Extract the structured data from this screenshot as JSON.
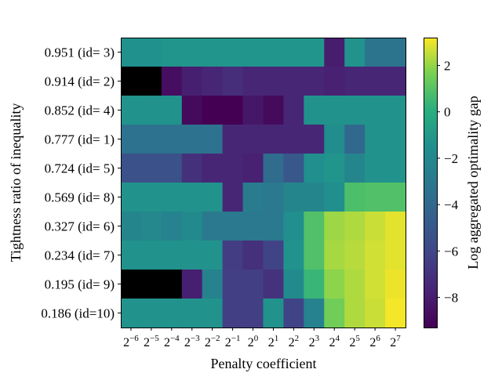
{
  "chart_data": {
    "type": "heatmap",
    "title": "",
    "xlabel": "Penalty coefficient",
    "ylabel": "Tightness ratio of inequality",
    "colorbar_label": "Log aggregated optimality gap",
    "colormap": "viridis",
    "color_range": [
      -9.3,
      3.2
    ],
    "colorbar_ticks": [
      2,
      0,
      -2,
      -4,
      -6,
      -8
    ],
    "colorbar_tick_labels": [
      "2",
      "0",
      "−2",
      "−4",
      "−6",
      "−8"
    ],
    "x_categories": [
      {
        "base": "2",
        "exp": "−6"
      },
      {
        "base": "2",
        "exp": "−5"
      },
      {
        "base": "2",
        "exp": "−4"
      },
      {
        "base": "2",
        "exp": "−3"
      },
      {
        "base": "2",
        "exp": "−2"
      },
      {
        "base": "2",
        "exp": "−1"
      },
      {
        "base": "2",
        "exp": "0"
      },
      {
        "base": "2",
        "exp": "1"
      },
      {
        "base": "2",
        "exp": "2"
      },
      {
        "base": "2",
        "exp": "3"
      },
      {
        "base": "2",
        "exp": "4"
      },
      {
        "base": "2",
        "exp": "5"
      },
      {
        "base": "2",
        "exp": "6"
      },
      {
        "base": "2",
        "exp": "7"
      }
    ],
    "y_categories": [
      "0.951 (id= 3)",
      "0.914 (id= 2)",
      "0.852 (id= 4)",
      "0.777 (id= 1)",
      "0.724 (id= 5)",
      "0.569 (id= 8)",
      "0.327 (id= 6)",
      "0.234 (id= 7)",
      "0.195 (id= 9)",
      "0.186 (id=10)"
    ],
    "missing_color": "#000000",
    "values": [
      [
        -1.4,
        -1.4,
        -1.2,
        -1.2,
        -1.2,
        -1.2,
        -1.2,
        -1.2,
        -1.2,
        -1.2,
        -8.0,
        -1.3,
        -3.3,
        -3.3
      ],
      [
        null,
        null,
        -8.7,
        -7.9,
        -7.6,
        -7.2,
        -7.6,
        -7.6,
        -7.6,
        -7.6,
        -7.8,
        -7.6,
        -7.6,
        -7.6
      ],
      [
        -1.3,
        -1.3,
        -1.3,
        -8.9,
        -9.3,
        -9.3,
        -8.3,
        -8.9,
        -7.6,
        -1.3,
        -1.3,
        -1.3,
        -1.3,
        -1.3
      ],
      [
        -3.4,
        -3.4,
        -3.4,
        -3.4,
        -3.4,
        -7.6,
        -7.6,
        -7.6,
        -7.6,
        -7.6,
        -1.6,
        -4.0,
        -1.3,
        -1.3
      ],
      [
        -5.4,
        -5.4,
        -5.4,
        -7.1,
        -7.6,
        -7.6,
        -7.8,
        -3.8,
        -5.0,
        -1.5,
        -1.2,
        -2.2,
        -1.3,
        -1.3
      ],
      [
        -1.3,
        -1.3,
        -1.3,
        -1.3,
        -1.3,
        -7.6,
        -2.8,
        -3.0,
        -2.2,
        -2.2,
        -1.5,
        0.8,
        0.9,
        0.9
      ],
      [
        -2.2,
        -2.0,
        -2.4,
        -1.8,
        -3.0,
        -3.0,
        -3.0,
        -3.0,
        -1.5,
        0.9,
        2.1,
        2.3,
        2.6,
        2.9
      ],
      [
        -1.3,
        -1.3,
        -1.3,
        -1.3,
        -1.3,
        -6.5,
        -7.1,
        -6.2,
        -1.3,
        0.9,
        2.2,
        2.4,
        2.7,
        2.9
      ],
      [
        null,
        null,
        null,
        -7.9,
        -2.4,
        -6.4,
        -6.4,
        -7.0,
        -1.8,
        0.4,
        1.9,
        2.3,
        2.7,
        3.0
      ],
      [
        -1.3,
        -1.3,
        -1.3,
        -1.3,
        -1.3,
        -6.4,
        -6.4,
        -1.3,
        -6.2,
        -2.4,
        1.5,
        2.3,
        2.6,
        3.1
      ]
    ],
    "grid": false,
    "legend": "colorbar-right"
  }
}
